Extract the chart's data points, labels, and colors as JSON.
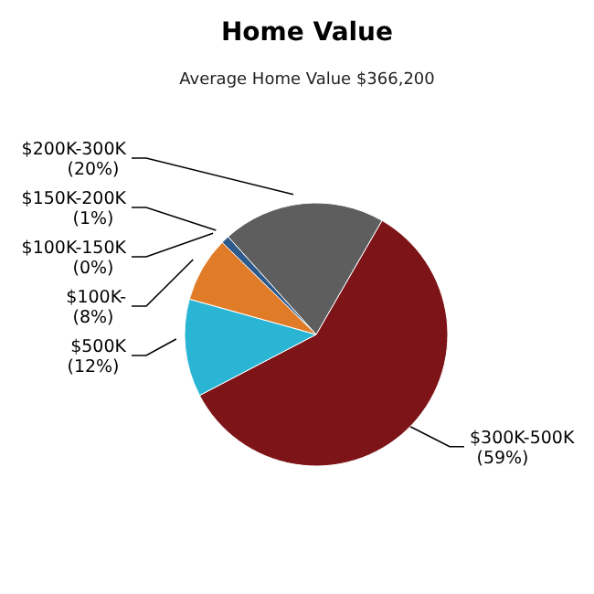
{
  "chart_data": {
    "type": "pie",
    "title": "Home Value",
    "subtitle": "Average Home Value  $366,200",
    "categories": [
      "$300K-500K",
      "$500K",
      "$100K-",
      "$100K-150K",
      "$150K-200K",
      "$200K-300K"
    ],
    "values": [
      59,
      12,
      8,
      0,
      1,
      20
    ],
    "value_labels": [
      "(59%)",
      "(12%)",
      "(8%)",
      "(0%)",
      "(1%)",
      "(20%)"
    ],
    "colors": [
      "#7d1518",
      "#2bb5d4",
      "#e07b28",
      "#c8a040",
      "#2e5a8c",
      "#5e5e5e"
    ]
  }
}
